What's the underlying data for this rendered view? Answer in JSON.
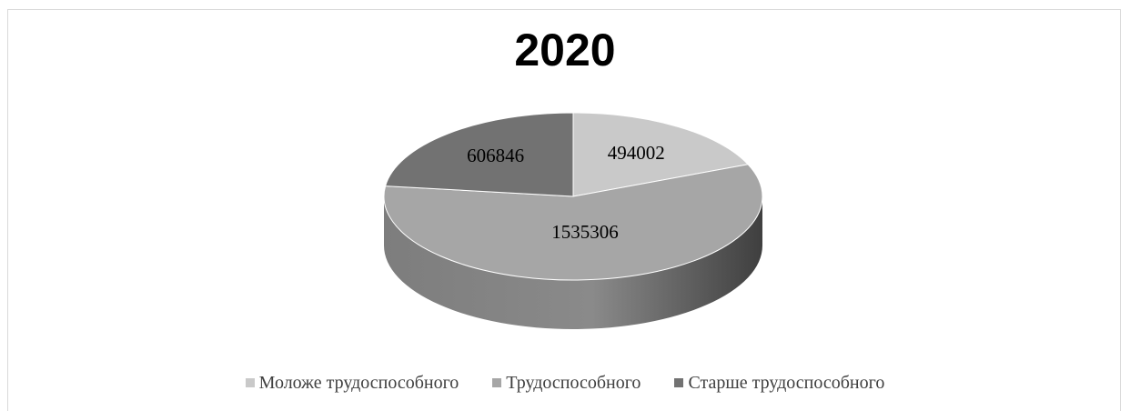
{
  "chart_data": {
    "type": "pie",
    "title": "2020",
    "categories": [
      "Моложе трудоспособного",
      "Трудоспособного",
      "Старше трудоспособного"
    ],
    "values": [
      494002,
      1535306,
      606846
    ],
    "data_labels": [
      "494002",
      "1535306",
      "606846"
    ],
    "colors": [
      "#c9c9c9",
      "#a6a6a6",
      "#727272"
    ],
    "side_colors": [
      "#8f8f8f",
      "#7a7a7a",
      "#4f4f4f"
    ],
    "legend_position": "bottom"
  }
}
